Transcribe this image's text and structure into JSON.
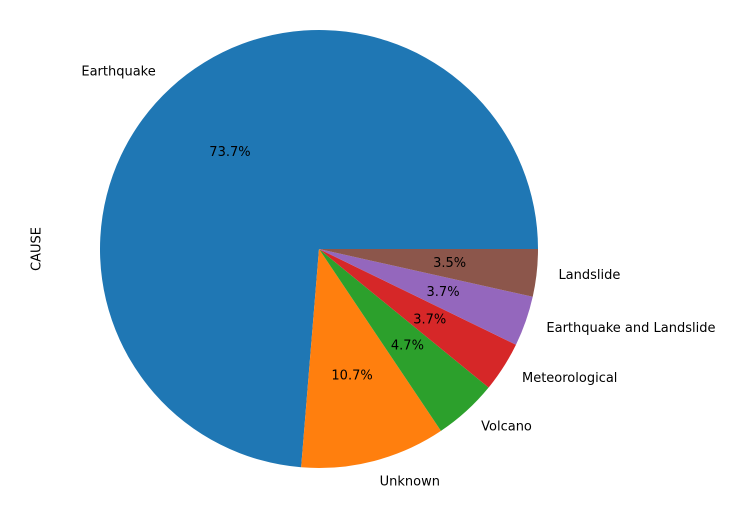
{
  "chart_data": {
    "type": "pie",
    "ylabel": "CAUSE",
    "start_angle": "0 degrees (3 o'clock)",
    "direction": "counter-clockwise",
    "slices": [
      {
        "label": "Earthquake",
        "percent": 73.7,
        "pct_label": "73.7%",
        "color": "#1f77b4"
      },
      {
        "label": "Unknown",
        "percent": 10.7,
        "pct_label": "10.7%",
        "color": "#ff7f0e"
      },
      {
        "label": "Volcano",
        "percent": 4.7,
        "pct_label": "4.7%",
        "color": "#2ca02c"
      },
      {
        "label": "Meteorological",
        "percent": 3.7,
        "pct_label": "3.7%",
        "color": "#d62728"
      },
      {
        "label": "Earthquake and Landslide",
        "percent": 3.7,
        "pct_label": "3.7%",
        "color": "#9467bd"
      },
      {
        "label": "Landslide",
        "percent": 3.5,
        "pct_label": "3.5%",
        "color": "#8c564b"
      }
    ]
  }
}
